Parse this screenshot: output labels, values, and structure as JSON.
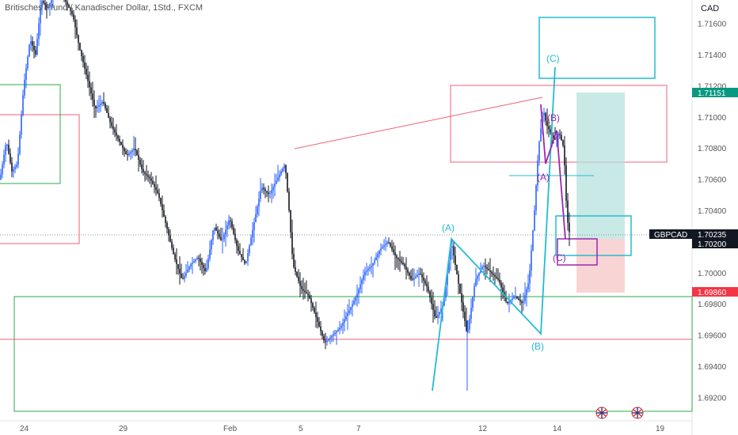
{
  "header": {
    "title": "Britisches Pfund / Kanadischer Dollar, 1Std., FXCM"
  },
  "currency": "CAD",
  "chart_data": {
    "type": "candlestick",
    "symbol": "GBPCAD",
    "ylim": [
      1.6905,
      1.7175
    ],
    "y_ticks": [
      "1.71600",
      "1.71400",
      "1.71200",
      "1.71000",
      "1.70800",
      "1.70600",
      "1.70400",
      "1.70200",
      "1.70000",
      "1.69800",
      "1.69600",
      "1.69400",
      "1.69200"
    ],
    "x_ticks": [
      "24",
      "29",
      "Feb",
      "5",
      "7",
      "12",
      "14",
      "19"
    ],
    "price_labels": {
      "upper": {
        "value": "1.71151",
        "color": "#089981"
      },
      "symbol": {
        "name": "GBPCAD",
        "value": "1.70235"
      },
      "current": {
        "value": "1.70200"
      },
      "lower": {
        "value": "1.69860",
        "color": "#f23645"
      }
    },
    "price_path": [
      [
        0,
        1.706
      ],
      [
        8,
        1.7085
      ],
      [
        15,
        1.7065
      ],
      [
        22,
        1.707
      ],
      [
        30,
        1.712
      ],
      [
        38,
        1.715
      ],
      [
        45,
        1.714
      ],
      [
        52,
        1.7175
      ],
      [
        60,
        1.717
      ],
      [
        70,
        1.718
      ],
      [
        82,
        1.7175
      ],
      [
        92,
        1.7165
      ],
      [
        100,
        1.7145
      ],
      [
        110,
        1.7125
      ],
      [
        120,
        1.7105
      ],
      [
        130,
        1.711
      ],
      [
        140,
        1.7095
      ],
      [
        150,
        1.7085
      ],
      [
        160,
        1.7075
      ],
      [
        170,
        1.708
      ],
      [
        180,
        1.7065
      ],
      [
        190,
        1.706
      ],
      [
        200,
        1.705
      ],
      [
        210,
        1.703
      ],
      [
        220,
        1.701
      ],
      [
        230,
        1.6995
      ],
      [
        240,
        1.7005
      ],
      [
        250,
        1.701
      ],
      [
        260,
        1.7
      ],
      [
        270,
        1.703
      ],
      [
        280,
        1.702
      ],
      [
        290,
        1.7035
      ],
      [
        300,
        1.7015
      ],
      [
        310,
        1.7005
      ],
      [
        320,
        1.703
      ],
      [
        330,
        1.7055
      ],
      [
        340,
        1.705
      ],
      [
        350,
        1.706
      ],
      [
        360,
        1.707
      ],
      [
        365,
        1.704
      ],
      [
        370,
        1.7005
      ],
      [
        380,
        1.699
      ],
      [
        390,
        1.6985
      ],
      [
        400,
        1.697
      ],
      [
        410,
        1.6955
      ],
      [
        420,
        1.696
      ],
      [
        430,
        1.6965
      ],
      [
        440,
        1.6975
      ],
      [
        450,
        1.6985
      ],
      [
        460,
        1.7
      ],
      [
        470,
        1.7005
      ],
      [
        480,
        1.7015
      ],
      [
        490,
        1.702
      ],
      [
        500,
        1.701
      ],
      [
        510,
        1.7005
      ],
      [
        520,
        1.6995
      ],
      [
        530,
        1.7
      ],
      [
        540,
        1.699
      ],
      [
        550,
        1.697
      ],
      [
        560,
        1.698
      ],
      [
        570,
        1.702
      ],
      [
        580,
        1.699
      ],
      [
        590,
        1.696
      ],
      [
        600,
        1.6995
      ],
      [
        610,
        1.7005
      ],
      [
        620,
        1.7
      ],
      [
        630,
        1.6995
      ],
      [
        640,
        1.698
      ],
      [
        650,
        1.6985
      ],
      [
        660,
        1.698
      ],
      [
        668,
        1.6995
      ],
      [
        675,
        1.704
      ],
      [
        680,
        1.708
      ],
      [
        686,
        1.7105
      ],
      [
        690,
        1.7095
      ],
      [
        695,
        1.709
      ],
      [
        700,
        1.7085
      ],
      [
        706,
        1.709
      ],
      [
        712,
        1.708
      ],
      [
        716,
        1.7035
      ],
      [
        720,
        1.7023
      ]
    ],
    "elliott_labels_cyan": [
      "(A)",
      "(B)",
      "(C)"
    ],
    "elliott_labels_purple": [
      "(A)",
      "(B)",
      "(C)"
    ],
    "colors": {
      "candle": "#131722",
      "candle_alt": "#2962ff",
      "cyan": "#22bcd1",
      "purple": "#9c27b0",
      "red": "#ef5f79",
      "green": "#2ba84a",
      "profit": "#b2dfdb",
      "loss": "#f8c9c9",
      "axis_text": "#555555",
      "grid": "#e8e8e8"
    }
  }
}
